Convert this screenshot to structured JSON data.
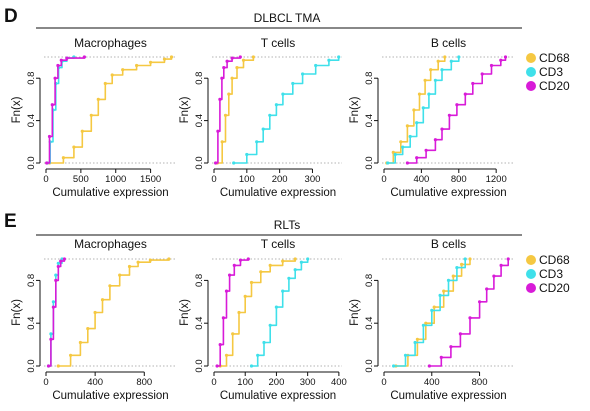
{
  "panels": [
    {
      "letter": "D",
      "title": "DLBCL TMA",
      "legend": [
        {
          "name": "CD68",
          "color": "#F5C842"
        },
        {
          "name": "CD3",
          "color": "#3FE0EA"
        },
        {
          "name": "CD20",
          "color": "#D81BD8"
        }
      ]
    },
    {
      "letter": "E",
      "title": "RLTs",
      "legend": [
        {
          "name": "CD68",
          "color": "#F5C842"
        },
        {
          "name": "CD3",
          "color": "#3FE0EA"
        },
        {
          "name": "CD20",
          "color": "#D81BD8"
        }
      ]
    }
  ],
  "chart_data": [
    {
      "type": "line",
      "subtype": "ecdf",
      "panel": "D",
      "title": "Macrophages",
      "xlabel": "Cumulative expression",
      "ylabel": "Fn(x)",
      "xlim": [
        0,
        1850
      ],
      "ylim": [
        0,
        1
      ],
      "xticks": [
        0,
        500,
        1000,
        1500
      ],
      "xtick_labels": [
        "0",
        "500",
        "1000",
        "1500"
      ],
      "yticks": [
        0.0,
        0.4,
        0.8
      ],
      "ytick_labels": [
        "0.0",
        "0.4",
        "0.8"
      ],
      "series": [
        {
          "name": "CD68",
          "color": "#F5C842",
          "x": [
            50,
            250,
            400,
            520,
            650,
            750,
            850,
            950,
            1100,
            1300,
            1500,
            1700,
            1800
          ],
          "y": [
            0,
            0.05,
            0.15,
            0.3,
            0.45,
            0.6,
            0.75,
            0.83,
            0.88,
            0.92,
            0.95,
            0.98,
            1
          ]
        },
        {
          "name": "CD3",
          "color": "#3FE0EA",
          "x": [
            20,
            60,
            100,
            140,
            180,
            230,
            300,
            400
          ],
          "y": [
            0,
            0.2,
            0.5,
            0.75,
            0.9,
            0.96,
            0.99,
            1
          ]
        },
        {
          "name": "CD20",
          "color": "#D81BD8",
          "x": [
            10,
            50,
            90,
            130,
            170,
            220,
            300,
            550
          ],
          "y": [
            0,
            0.25,
            0.55,
            0.8,
            0.92,
            0.97,
            0.99,
            1
          ]
        }
      ]
    },
    {
      "type": "line",
      "subtype": "ecdf",
      "panel": "D",
      "title": "T cells",
      "xlabel": "Cumulative expression",
      "ylabel": "Fn(x)",
      "xlim": [
        0,
        390
      ],
      "ylim": [
        0,
        1
      ],
      "xticks": [
        0,
        100,
        200,
        300
      ],
      "xtick_labels": [
        "0",
        "100",
        "200",
        "300"
      ],
      "yticks": [
        0.0,
        0.4,
        0.8
      ],
      "ytick_labels": [
        "0.0",
        "0.4",
        "0.8"
      ],
      "series": [
        {
          "name": "CD68",
          "color": "#F5C842",
          "x": [
            10,
            25,
            35,
            45,
            55,
            70,
            90,
            120
          ],
          "y": [
            0,
            0.2,
            0.45,
            0.65,
            0.8,
            0.9,
            0.97,
            1
          ]
        },
        {
          "name": "CD3",
          "color": "#3FE0EA",
          "x": [
            60,
            100,
            130,
            150,
            170,
            190,
            210,
            240,
            270,
            310,
            350,
            380
          ],
          "y": [
            0,
            0.08,
            0.2,
            0.32,
            0.45,
            0.55,
            0.65,
            0.75,
            0.84,
            0.92,
            0.97,
            1
          ]
        },
        {
          "name": "CD20",
          "color": "#D81BD8",
          "x": [
            5,
            12,
            18,
            24,
            30,
            40,
            55,
            80
          ],
          "y": [
            0,
            0.3,
            0.6,
            0.8,
            0.9,
            0.96,
            0.99,
            1
          ]
        }
      ]
    },
    {
      "type": "line",
      "subtype": "ecdf",
      "panel": "D",
      "title": "B cells",
      "xlabel": "Cumulative expression",
      "ylabel": "Fn(x)",
      "xlim": [
        0,
        1380
      ],
      "ylim": [
        0,
        1
      ],
      "xticks": [
        0,
        400,
        800,
        1200
      ],
      "xtick_labels": [
        "0",
        "400",
        "800",
        "1200"
      ],
      "yticks": [
        0.0,
        0.4,
        0.8
      ],
      "ytick_labels": [
        "0.0",
        "0.4",
        "0.8"
      ],
      "series": [
        {
          "name": "CD68",
          "color": "#F5C842",
          "x": [
            30,
            100,
            180,
            250,
            320,
            380,
            440,
            500,
            580,
            650
          ],
          "y": [
            0,
            0.1,
            0.2,
            0.35,
            0.5,
            0.65,
            0.78,
            0.88,
            0.96,
            1
          ]
        },
        {
          "name": "CD3",
          "color": "#3FE0EA",
          "x": [
            40,
            120,
            200,
            280,
            350,
            420,
            480,
            550,
            620,
            720,
            800
          ],
          "y": [
            0,
            0.08,
            0.15,
            0.25,
            0.38,
            0.52,
            0.65,
            0.78,
            0.88,
            0.96,
            1
          ]
        },
        {
          "name": "CD20",
          "color": "#D81BD8",
          "x": [
            250,
            350,
            450,
            550,
            620,
            700,
            780,
            870,
            950,
            1050,
            1150,
            1250,
            1300
          ],
          "y": [
            0,
            0.05,
            0.12,
            0.22,
            0.32,
            0.45,
            0.55,
            0.65,
            0.75,
            0.84,
            0.92,
            0.97,
            1
          ]
        }
      ]
    },
    {
      "type": "line",
      "subtype": "ecdf",
      "panel": "E",
      "title": "Macrophages",
      "xlabel": "Cumulative expression",
      "ylabel": "Fn(x)",
      "xlim": [
        0,
        1050
      ],
      "ylim": [
        0,
        1
      ],
      "xticks": [
        0,
        400,
        800
      ],
      "xtick_labels": [
        "0",
        "400",
        "800"
      ],
      "yticks": [
        0.0,
        0.4,
        0.8
      ],
      "ytick_labels": [
        "0.0",
        "0.4",
        "0.8"
      ],
      "series": [
        {
          "name": "CD68",
          "color": "#F5C842",
          "x": [
            100,
            200,
            280,
            340,
            400,
            460,
            520,
            600,
            680,
            750,
            850,
            1000
          ],
          "y": [
            0,
            0.1,
            0.22,
            0.35,
            0.5,
            0.62,
            0.75,
            0.85,
            0.93,
            0.97,
            0.99,
            1
          ]
        },
        {
          "name": "CD3",
          "color": "#3FE0EA",
          "x": [
            20,
            40,
            60,
            80,
            100,
            130
          ],
          "y": [
            0,
            0.3,
            0.6,
            0.85,
            0.96,
            1
          ]
        },
        {
          "name": "CD20",
          "color": "#D81BD8",
          "x": [
            20,
            40,
            60,
            80,
            100,
            120,
            150
          ],
          "y": [
            0,
            0.25,
            0.55,
            0.8,
            0.93,
            0.98,
            1
          ]
        }
      ]
    },
    {
      "type": "line",
      "subtype": "ecdf",
      "panel": "E",
      "title": "T cells",
      "xlabel": "Cumulative expression",
      "ylabel": "Fn(x)",
      "xlim": [
        0,
        410
      ],
      "ylim": [
        0,
        1
      ],
      "xticks": [
        0,
        100,
        200,
        300,
        400
      ],
      "xtick_labels": [
        "0",
        "100",
        "200",
        "300",
        "400"
      ],
      "yticks": [
        0.0,
        0.4,
        0.8
      ],
      "ytick_labels": [
        "0.0",
        "0.4",
        "0.8"
      ],
      "series": [
        {
          "name": "CD68",
          "color": "#F5C842",
          "x": [
            20,
            40,
            60,
            80,
            100,
            120,
            150,
            180,
            220,
            260
          ],
          "y": [
            0,
            0.1,
            0.3,
            0.5,
            0.65,
            0.78,
            0.88,
            0.94,
            0.98,
            1
          ]
        },
        {
          "name": "CD3",
          "color": "#3FE0EA",
          "x": [
            120,
            140,
            160,
            180,
            200,
            220,
            240,
            260,
            280,
            300
          ],
          "y": [
            0,
            0.1,
            0.22,
            0.38,
            0.55,
            0.7,
            0.82,
            0.9,
            0.97,
            1
          ]
        },
        {
          "name": "CD20",
          "color": "#D81BD8",
          "x": [
            10,
            20,
            30,
            40,
            50,
            65,
            85,
            110
          ],
          "y": [
            0,
            0.2,
            0.45,
            0.7,
            0.85,
            0.94,
            0.99,
            1
          ]
        }
      ]
    },
    {
      "type": "line",
      "subtype": "ecdf",
      "panel": "E",
      "title": "B cells",
      "xlabel": "Cumulative expression",
      "ylabel": "Fn(x)",
      "xlim": [
        0,
        1080
      ],
      "ylim": [
        0,
        1
      ],
      "xticks": [
        0,
        400,
        800
      ],
      "xtick_labels": [
        "0",
        "400",
        "800"
      ],
      "yticks": [
        0.0,
        0.4,
        0.8
      ],
      "ytick_labels": [
        "0.0",
        "0.4",
        "0.8"
      ],
      "series": [
        {
          "name": "CD68",
          "color": "#F5C842",
          "x": [
            100,
            200,
            280,
            350,
            420,
            500,
            580,
            650,
            720
          ],
          "y": [
            0,
            0.1,
            0.25,
            0.4,
            0.55,
            0.7,
            0.84,
            0.95,
            1
          ]
        },
        {
          "name": "CD3",
          "color": "#3FE0EA",
          "x": [
            80,
            180,
            260,
            330,
            400,
            470,
            540,
            610,
            680
          ],
          "y": [
            0,
            0.1,
            0.22,
            0.38,
            0.52,
            0.66,
            0.8,
            0.92,
            1
          ]
        },
        {
          "name": "CD20",
          "color": "#D81BD8",
          "x": [
            380,
            480,
            560,
            640,
            720,
            800,
            860,
            920,
            980,
            1040
          ],
          "y": [
            0,
            0.08,
            0.18,
            0.3,
            0.45,
            0.6,
            0.72,
            0.84,
            0.94,
            1
          ]
        }
      ]
    }
  ]
}
